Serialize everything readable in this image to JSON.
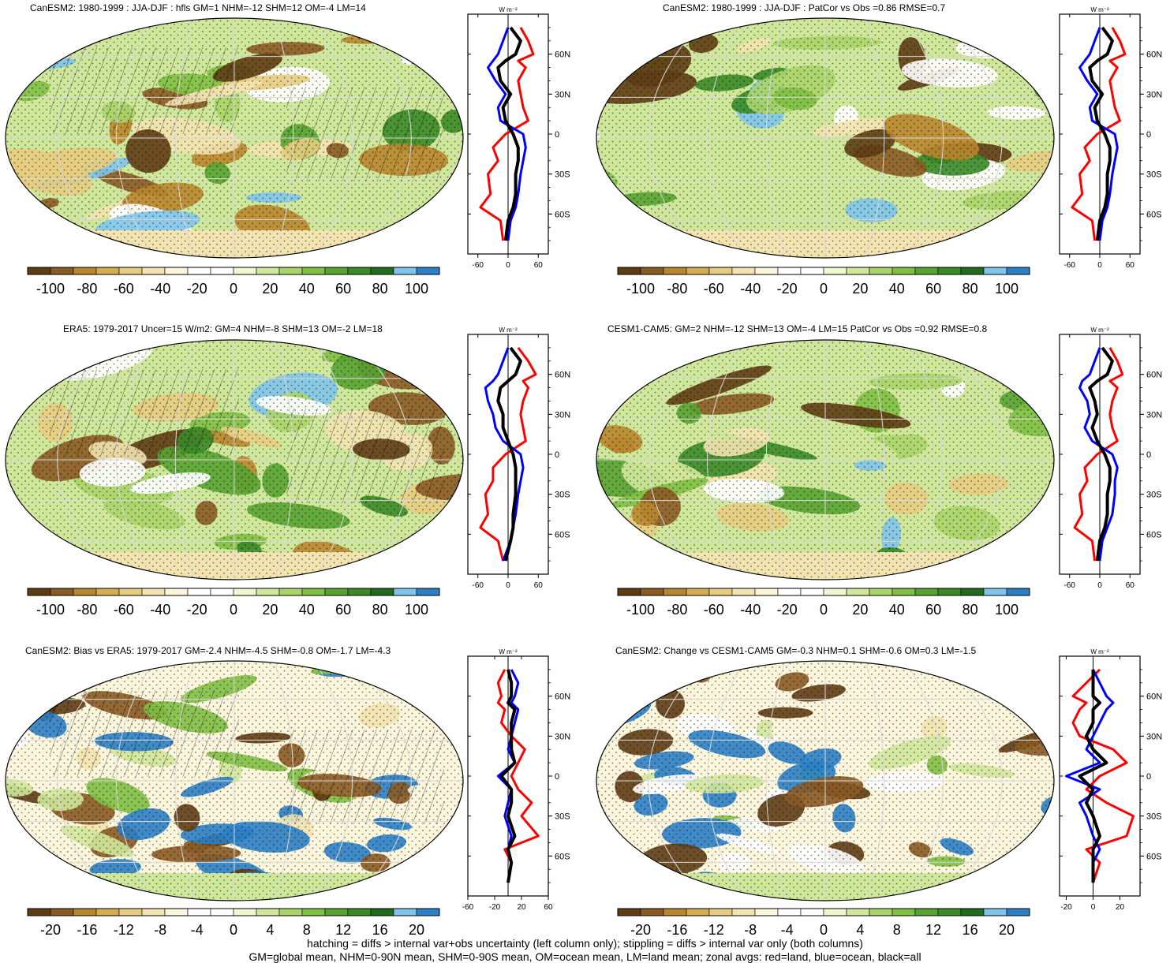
{
  "colors": {
    "palette": [
      "#5e3c14",
      "#8a5a24",
      "#b8862f",
      "#d4ad52",
      "#e6cc80",
      "#f3e3b0",
      "#fbf5dc",
      "#ffffff",
      "#ffffff",
      "#eef7d0",
      "#cfe79a",
      "#a9d46a",
      "#7fbf45",
      "#58a232",
      "#3a8a28",
      "#226b1e",
      "#7fc4ea",
      "#2b7fc4"
    ],
    "land_line": "#ff0000",
    "ocean_line": "#0000ff",
    "all_line": "#000000"
  },
  "zonal_unit": "W m⁻²",
  "lat_labels": [
    "60N",
    "30N",
    "0",
    "30S",
    "60S"
  ],
  "panels": [
    {
      "id": "p1",
      "title": "CanESM2: 1980-1999 : JJA-DJF : hfls GM=1 NHM=-12 SHM=12 OM=-4 LM=14",
      "cbar_labels": [
        "-100",
        "-80",
        "-60",
        "-40",
        "-20",
        "0",
        "20",
        "40",
        "60",
        "80",
        "100"
      ],
      "zonal_ticks": [
        "-60",
        "0",
        "60"
      ],
      "zonal_range": [
        -80,
        80
      ],
      "hatched": true,
      "variant": "mean"
    },
    {
      "id": "p2",
      "title": "CanESM2: 1980-1999 : JJA-DJF : PatCor vs Obs =0.86 RMSE=0.7",
      "cbar_labels": [
        "-100",
        "-80",
        "-60",
        "-40",
        "-20",
        "0",
        "20",
        "40",
        "60",
        "80",
        "100"
      ],
      "zonal_ticks": [
        "-60",
        "0",
        "60"
      ],
      "zonal_range": [
        -80,
        80
      ],
      "hatched": false,
      "variant": "mean"
    },
    {
      "id": "p3",
      "title": "ERA5: 1979-2017 Uncer=15 W/m2: GM=4 NHM=-8 SHM=13 OM=-2 LM=18",
      "cbar_labels": [
        "-100",
        "-80",
        "-60",
        "-40",
        "-20",
        "0",
        "20",
        "40",
        "60",
        "80",
        "100"
      ],
      "zonal_ticks": [
        "-60",
        "0",
        "60"
      ],
      "zonal_range": [
        -80,
        80
      ],
      "hatched": true,
      "variant": "mean"
    },
    {
      "id": "p4",
      "title": "CESM1-CAM5: GM=2 NHM=-12 SHM=13 OM=-4 LM=15 PatCor vs Obs =0.92 RMSE=0.8",
      "cbar_labels": [
        "-100",
        "-80",
        "-60",
        "-40",
        "-20",
        "0",
        "20",
        "40",
        "60",
        "80",
        "100"
      ],
      "zonal_ticks": [
        "-60",
        "0",
        "60"
      ],
      "zonal_range": [
        -80,
        80
      ],
      "hatched": false,
      "variant": "mean"
    },
    {
      "id": "p5",
      "title": "CanESM2: Bias vs ERA5: 1979-2017 GM=-2.4 NHM=-4.5 SHM=-0.8 OM=-1.7 LM=-4.3",
      "cbar_labels": [
        "-20",
        "-16",
        "-12",
        "-8",
        "-4",
        "0",
        "4",
        "8",
        "12",
        "16",
        "20"
      ],
      "zonal_ticks": [
        "-60",
        "-20",
        "20",
        "60"
      ],
      "zonal_range": [
        -60,
        60
      ],
      "hatched": true,
      "variant": "diff"
    },
    {
      "id": "p6",
      "title": "CanESM2: Change vs CESM1-CAM5 GM=-0.3 NHM=0.1 SHM=-0.6 OM=0.3 LM=-1.5",
      "cbar_labels": [
        "-20",
        "-16",
        "-12",
        "-8",
        "-4",
        "0",
        "4",
        "8",
        "12",
        "16",
        "20"
      ],
      "zonal_ticks": [
        "-20",
        "0",
        "20"
      ],
      "zonal_range": [
        -25,
        35
      ],
      "hatched": false,
      "variant": "diff"
    }
  ],
  "footer": {
    "line1": "hatching = diffs > internal var+obs uncertainty (left column only); stippling = diffs > internal var only (both columns)",
    "line2": "GM=global mean, NHM=0-90N mean, SHM=0-90S mean, OM=ocean mean, LM=land mean; zonal avgs: red=land, blue=ocean, black=all"
  },
  "chart_data": [
    {
      "type": "line",
      "title": "CanESM2: 1980-1999 : JJA-DJF : hfls GM=1 NHM=-12 SHM=12 OM=-4 LM=14",
      "xlabel": "W m⁻²",
      "ylabel": "",
      "xlim": [
        -80,
        80
      ],
      "ylim": [
        -90,
        90
      ],
      "series": [
        {
          "name": "land",
          "x": [
            -10,
            -15,
            -55,
            -35,
            -40,
            -20,
            -30,
            -5,
            40,
            30,
            25,
            20,
            35,
            20,
            50,
            40,
            25
          ],
          "y": [
            -80,
            -65,
            -55,
            -45,
            -30,
            -20,
            -10,
            0,
            10,
            20,
            30,
            40,
            50,
            55,
            60,
            70,
            80
          ]
        },
        {
          "name": "ocean",
          "x": [
            0,
            5,
            15,
            20,
            25,
            30,
            35,
            30,
            -15,
            -20,
            -5,
            -25,
            -40,
            -30,
            -20,
            -10,
            0
          ],
          "y": [
            -80,
            -65,
            -55,
            -45,
            -30,
            -20,
            -10,
            0,
            10,
            20,
            30,
            40,
            50,
            55,
            60,
            70,
            80
          ]
        },
        {
          "name": "all",
          "x": [
            -5,
            0,
            10,
            15,
            15,
            20,
            20,
            10,
            -5,
            -10,
            5,
            -15,
            -20,
            -5,
            15,
            25,
            5
          ],
          "y": [
            -80,
            -65,
            -55,
            -45,
            -30,
            -20,
            -10,
            0,
            10,
            20,
            30,
            40,
            50,
            55,
            60,
            70,
            80
          ]
        }
      ]
    },
    {
      "type": "line",
      "title": "CanESM2: 1980-1999 : JJA-DJF : PatCor vs Obs =0.86 RMSE=0.7",
      "xlabel": "W m⁻²",
      "ylabel": "",
      "xlim": [
        -80,
        80
      ],
      "ylim": [
        -90,
        90
      ],
      "series": [
        {
          "name": "land",
          "x": [
            -10,
            -15,
            -55,
            -35,
            -40,
            -20,
            -30,
            -5,
            40,
            30,
            25,
            20,
            35,
            20,
            50,
            40,
            25
          ],
          "y": [
            -80,
            -65,
            -55,
            -45,
            -30,
            -20,
            -10,
            0,
            10,
            20,
            30,
            40,
            50,
            55,
            60,
            70,
            80
          ]
        },
        {
          "name": "ocean",
          "x": [
            0,
            5,
            15,
            20,
            25,
            30,
            35,
            30,
            -15,
            -20,
            -5,
            -25,
            -40,
            -30,
            -20,
            -10,
            0
          ],
          "y": [
            -80,
            -65,
            -55,
            -45,
            -30,
            -20,
            -10,
            0,
            10,
            20,
            30,
            40,
            50,
            55,
            60,
            70,
            80
          ]
        },
        {
          "name": "all",
          "x": [
            -5,
            0,
            10,
            15,
            15,
            20,
            20,
            10,
            -5,
            -10,
            5,
            -15,
            -20,
            -5,
            15,
            25,
            5
          ],
          "y": [
            -80,
            -65,
            -55,
            -45,
            -30,
            -20,
            -10,
            0,
            10,
            20,
            30,
            40,
            50,
            55,
            60,
            70,
            80
          ]
        }
      ]
    },
    {
      "type": "line",
      "title": "ERA5: 1979-2017 Uncer=15 W/m2: GM=4 NHM=-8 SHM=13 OM=-2 LM=18",
      "xlabel": "W m⁻²",
      "ylabel": "",
      "xlim": [
        -80,
        80
      ],
      "ylim": [
        -90,
        90
      ],
      "series": [
        {
          "name": "land",
          "x": [
            -10,
            -20,
            -55,
            -40,
            -45,
            -30,
            -30,
            -5,
            35,
            30,
            25,
            30,
            40,
            30,
            55,
            40,
            20
          ],
          "y": [
            -80,
            -65,
            -55,
            -45,
            -30,
            -20,
            -10,
            0,
            10,
            20,
            30,
            40,
            50,
            55,
            60,
            70,
            80
          ]
        },
        {
          "name": "ocean",
          "x": [
            -10,
            5,
            10,
            15,
            20,
            25,
            30,
            25,
            -10,
            -25,
            -30,
            -40,
            -45,
            -30,
            -20,
            -10,
            0
          ],
          "y": [
            -80,
            -65,
            -55,
            -45,
            -30,
            -20,
            -10,
            0,
            10,
            20,
            30,
            40,
            50,
            55,
            60,
            70,
            80
          ]
        },
        {
          "name": "all",
          "x": [
            -5,
            5,
            10,
            10,
            15,
            15,
            15,
            10,
            0,
            -10,
            -10,
            -20,
            -15,
            0,
            15,
            25,
            5
          ],
          "y": [
            -80,
            -65,
            -55,
            -45,
            -30,
            -20,
            -10,
            0,
            10,
            20,
            30,
            40,
            50,
            55,
            60,
            70,
            80
          ]
        }
      ]
    },
    {
      "type": "line",
      "title": "CESM1-CAM5: GM=2 NHM=-12 SHM=13 OM=-4 LM=15 PatCor vs Obs =0.92 RMSE=0.8",
      "xlabel": "W m⁻²",
      "ylabel": "",
      "xlim": [
        -80,
        80
      ],
      "ylim": [
        -90,
        90
      ],
      "series": [
        {
          "name": "land",
          "x": [
            -10,
            -15,
            -50,
            -35,
            -40,
            -25,
            -30,
            -5,
            35,
            25,
            20,
            25,
            35,
            20,
            45,
            35,
            20
          ],
          "y": [
            -80,
            -65,
            -55,
            -45,
            -30,
            -20,
            -10,
            0,
            10,
            20,
            30,
            40,
            50,
            55,
            60,
            70,
            80
          ]
        },
        {
          "name": "ocean",
          "x": [
            0,
            5,
            15,
            25,
            30,
            30,
            35,
            25,
            -15,
            -30,
            -20,
            -25,
            -40,
            -35,
            -20,
            -10,
            0
          ],
          "y": [
            -80,
            -65,
            -55,
            -45,
            -30,
            -20,
            -10,
            0,
            10,
            20,
            30,
            40,
            50,
            55,
            60,
            70,
            80
          ]
        },
        {
          "name": "all",
          "x": [
            -5,
            0,
            10,
            15,
            15,
            20,
            20,
            10,
            -5,
            -15,
            -5,
            -10,
            -20,
            -5,
            15,
            25,
            5
          ],
          "y": [
            -80,
            -65,
            -55,
            -45,
            -30,
            -20,
            -10,
            0,
            10,
            20,
            30,
            40,
            50,
            55,
            60,
            70,
            80
          ]
        }
      ]
    },
    {
      "type": "line",
      "title": "CanESM2: Bias vs ERA5: 1979-2017 GM=-2.4 NHM=-4.5 SHM=-0.8 OM=-1.7 LM=-4.3",
      "xlabel": "W m⁻²",
      "ylabel": "",
      "xlim": [
        -60,
        60
      ],
      "ylim": [
        -90,
        90
      ],
      "series": [
        {
          "name": "land",
          "x": [
            0,
            5,
            -5,
            45,
            20,
            35,
            15,
            5,
            15,
            25,
            5,
            -10,
            -5,
            -15,
            -10,
            -15,
            -5
          ],
          "y": [
            -80,
            -65,
            -55,
            -45,
            -30,
            -20,
            -10,
            0,
            10,
            20,
            30,
            40,
            50,
            55,
            60,
            70,
            80
          ]
        },
        {
          "name": "ocean",
          "x": [
            0,
            5,
            0,
            5,
            -5,
            0,
            5,
            -15,
            10,
            0,
            5,
            10,
            15,
            5,
            10,
            15,
            5
          ],
          "y": [
            -80,
            -65,
            -55,
            -45,
            -30,
            -20,
            -10,
            0,
            10,
            20,
            30,
            40,
            50,
            55,
            60,
            70,
            80
          ]
        },
        {
          "name": "all",
          "x": [
            0,
            5,
            0,
            10,
            0,
            5,
            5,
            -10,
            10,
            5,
            5,
            5,
            10,
            0,
            5,
            5,
            0
          ],
          "y": [
            -80,
            -65,
            -55,
            -45,
            -30,
            -20,
            -10,
            0,
            10,
            20,
            30,
            40,
            50,
            55,
            60,
            70,
            80
          ]
        }
      ]
    },
    {
      "type": "line",
      "title": "CanESM2: Change vs CESM1-CAM5 GM=-0.3 NHM=0.1 SHM=-0.6 OM=0.3 LM=-1.5",
      "xlabel": "W m⁻²",
      "ylabel": "",
      "xlim": [
        -25,
        35
      ],
      "ylim": [
        -90,
        90
      ],
      "series": [
        {
          "name": "land",
          "x": [
            0,
            5,
            -5,
            25,
            30,
            10,
            -5,
            5,
            25,
            15,
            -10,
            -15,
            -10,
            -5,
            -15,
            -5,
            5
          ],
          "y": [
            -80,
            -65,
            -55,
            -45,
            -30,
            -20,
            -10,
            0,
            10,
            20,
            30,
            40,
            50,
            55,
            60,
            70,
            80
          ]
        },
        {
          "name": "ocean",
          "x": [
            0,
            0,
            5,
            0,
            -5,
            -10,
            5,
            -20,
            5,
            -5,
            0,
            5,
            10,
            15,
            10,
            5,
            0
          ],
          "y": [
            -80,
            -65,
            -55,
            -45,
            -30,
            -20,
            -10,
            0,
            10,
            20,
            30,
            40,
            50,
            55,
            60,
            70,
            80
          ]
        },
        {
          "name": "all",
          "x": [
            0,
            0,
            0,
            5,
            0,
            -5,
            0,
            -10,
            10,
            0,
            -5,
            0,
            0,
            5,
            0,
            0,
            0
          ],
          "y": [
            -80,
            -65,
            -55,
            -45,
            -30,
            -20,
            -10,
            0,
            10,
            20,
            30,
            40,
            50,
            55,
            60,
            70,
            80
          ]
        }
      ]
    }
  ]
}
